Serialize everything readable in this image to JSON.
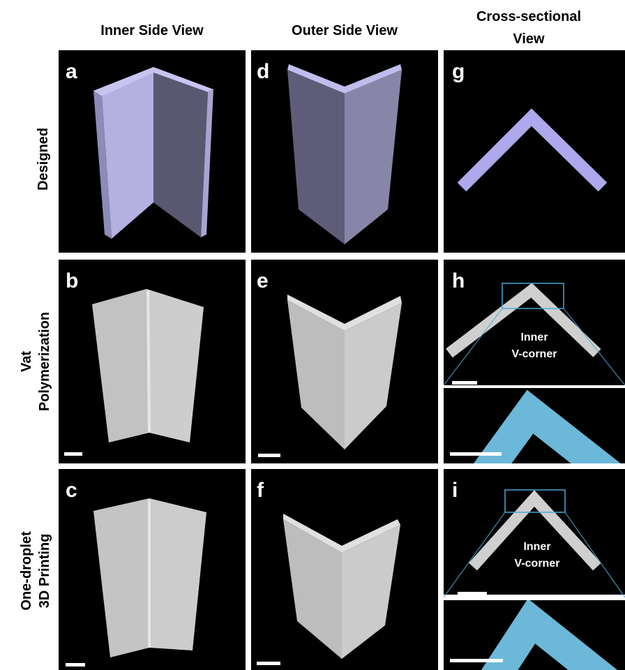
{
  "headers": [
    "Inner Side View",
    "Outer Side View",
    [
      "Cross-sectional",
      "View"
    ]
  ],
  "rows": [
    "Designed",
    [
      "Vat",
      "Polymerization"
    ],
    [
      "One-droplet",
      "3D Printing"
    ]
  ],
  "panels": [
    "a",
    "b",
    "c",
    "d",
    "e",
    "f",
    "g",
    "h",
    "i"
  ],
  "annotations": [
    [
      "Inner",
      "V-corner"
    ],
    [
      "Inner",
      "V-corner"
    ]
  ]
}
